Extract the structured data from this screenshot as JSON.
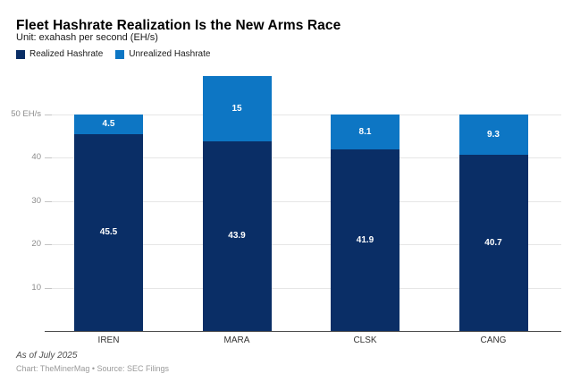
{
  "title": "Fleet Hashrate Realization Is the New Arms Race",
  "subtitle": "Unit: exahash per second (EH/s)",
  "colors": {
    "realized": "#0a2e66",
    "unrealized": "#0d76c4",
    "grid": "#e6e6e6",
    "tick_stub": "#c4c4c4",
    "axis_line": "#4d4d4d",
    "tick_label": "#8c8c8c",
    "bar_label": "#ffffff",
    "background": "#ffffff"
  },
  "legend": {
    "items": [
      {
        "label": "Realized Hashrate",
        "color": "#0a2e66"
      },
      {
        "label": "Unrealized Hashrate",
        "color": "#0d76c4"
      }
    ]
  },
  "footer": {
    "as_of": "As of July 2025",
    "credit": "Chart: TheMinerMag • Source: SEC Filings"
  },
  "chart_data": {
    "type": "bar",
    "stacked": true,
    "categories": [
      "IREN",
      "MARA",
      "CLSK",
      "CANG"
    ],
    "series": [
      {
        "name": "Realized Hashrate",
        "color": "#0a2e66",
        "values": [
          45.5,
          43.9,
          41.9,
          40.7
        ]
      },
      {
        "name": "Unrealized Hashrate",
        "color": "#0d76c4",
        "values": [
          4.5,
          15,
          8.1,
          9.3
        ]
      }
    ],
    "stack_totals": [
      50,
      58.9,
      50,
      50
    ],
    "value_labels": "inside",
    "yticks": [
      10,
      20,
      30,
      40,
      50
    ],
    "ytick_labels": [
      "10",
      "20",
      "30",
      "40",
      "50 EH/s"
    ],
    "ylim": [
      0,
      60
    ],
    "grid": true,
    "legend_position": "top-left"
  }
}
